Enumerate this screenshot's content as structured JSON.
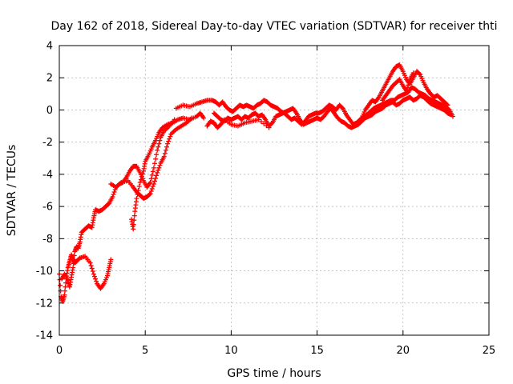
{
  "chart_data": {
    "type": "scatter",
    "title": "Day 162 of 2018, Sidereal Day-to-day VTEC variation (SDTVAR) for receiver thti",
    "xlabel": "GPS time / hours",
    "ylabel": "SDTVAR / TECUs",
    "xlim": [
      0,
      25
    ],
    "ylim": [
      -14,
      4
    ],
    "xticks": [
      0,
      5,
      10,
      15,
      20,
      25
    ],
    "yticks": [
      -14,
      -12,
      -10,
      -8,
      -6,
      -4,
      -2,
      0,
      2,
      4
    ],
    "grid": true,
    "marker": "plus",
    "series": [
      {
        "name": "SDTVAR",
        "color": "#ff0000",
        "points": [
          [
            0.0,
            -10.2
          ],
          [
            0.1,
            -11.6
          ],
          [
            0.2,
            -11.9
          ],
          [
            0.3,
            -11.5
          ],
          [
            0.4,
            -10.5
          ],
          [
            0.5,
            -9.8
          ],
          [
            0.6,
            -9.4
          ],
          [
            0.7,
            -9.0
          ],
          [
            0.8,
            -9.3
          ],
          [
            0.9,
            -9.5
          ],
          [
            1.0,
            -9.4
          ],
          [
            1.2,
            -9.2
          ],
          [
            1.5,
            -9.1
          ],
          [
            1.8,
            -9.5
          ],
          [
            2.0,
            -10.2
          ],
          [
            2.2,
            -10.8
          ],
          [
            2.4,
            -11.1
          ],
          [
            2.6,
            -10.8
          ],
          [
            2.8,
            -10.3
          ],
          [
            2.9,
            -9.8
          ],
          [
            3.0,
            -9.3
          ],
          [
            0.15,
            -10.5
          ],
          [
            0.3,
            -10.2
          ],
          [
            0.5,
            -10.6
          ],
          [
            0.6,
            -11.0
          ],
          [
            0.7,
            -10.4
          ],
          [
            0.8,
            -9.8
          ],
          [
            0.9,
            -8.8
          ],
          [
            1.0,
            -8.5
          ],
          [
            1.1,
            -8.6
          ],
          [
            1.2,
            -8.2
          ],
          [
            1.3,
            -7.6
          ],
          [
            1.5,
            -7.4
          ],
          [
            1.7,
            -7.2
          ],
          [
            1.9,
            -7.3
          ],
          [
            2.0,
            -6.7
          ],
          [
            2.1,
            -6.2
          ],
          [
            2.3,
            -6.3
          ],
          [
            2.5,
            -6.2
          ],
          [
            2.7,
            -6.0
          ],
          [
            2.9,
            -5.8
          ],
          [
            3.1,
            -5.4
          ],
          [
            3.3,
            -4.8
          ],
          [
            3.5,
            -4.6
          ],
          [
            3.7,
            -4.5
          ],
          [
            3.9,
            -4.2
          ],
          [
            4.1,
            -3.8
          ],
          [
            4.3,
            -3.5
          ],
          [
            4.5,
            -3.5
          ],
          [
            4.7,
            -3.9
          ],
          [
            4.9,
            -4.4
          ],
          [
            5.1,
            -4.8
          ],
          [
            5.3,
            -4.5
          ],
          [
            5.5,
            -3.6
          ],
          [
            5.7,
            -2.5
          ],
          [
            5.9,
            -1.7
          ],
          [
            6.1,
            -1.3
          ],
          [
            6.4,
            -1.0
          ],
          [
            6.7,
            -0.6
          ],
          [
            3.0,
            -4.6
          ],
          [
            3.3,
            -4.8
          ],
          [
            3.6,
            -4.5
          ],
          [
            4.0,
            -4.4
          ],
          [
            4.3,
            -4.8
          ],
          [
            4.5,
            -5.1
          ],
          [
            4.7,
            -5.3
          ],
          [
            4.9,
            -5.5
          ],
          [
            5.1,
            -5.4
          ],
          [
            5.3,
            -5.2
          ],
          [
            5.5,
            -4.6
          ],
          [
            5.7,
            -3.9
          ],
          [
            5.9,
            -3.3
          ],
          [
            6.1,
            -2.9
          ],
          [
            6.3,
            -2.1
          ],
          [
            6.5,
            -1.5
          ],
          [
            6.8,
            -1.2
          ],
          [
            7.1,
            -1.0
          ],
          [
            7.4,
            -0.8
          ],
          [
            7.7,
            -0.5
          ],
          [
            4.2,
            -6.8
          ],
          [
            4.3,
            -7.4
          ],
          [
            4.4,
            -6.3
          ],
          [
            4.5,
            -5.5
          ],
          [
            4.7,
            -4.5
          ],
          [
            4.9,
            -3.8
          ],
          [
            5.0,
            -3.2
          ],
          [
            5.2,
            -2.8
          ],
          [
            5.4,
            -2.3
          ],
          [
            5.6,
            -1.9
          ],
          [
            5.8,
            -1.4
          ],
          [
            6.0,
            -1.1
          ],
          [
            6.3,
            -0.9
          ],
          [
            6.6,
            -0.8
          ],
          [
            6.9,
            -0.6
          ],
          [
            7.2,
            -0.5
          ],
          [
            7.6,
            -0.6
          ],
          [
            8.0,
            -0.4
          ],
          [
            8.2,
            -0.2
          ],
          [
            8.4,
            -0.5
          ],
          [
            6.8,
            0.1
          ],
          [
            7.2,
            0.3
          ],
          [
            7.6,
            0.2
          ],
          [
            8.0,
            0.4
          ],
          [
            8.3,
            0.5
          ],
          [
            8.6,
            0.6
          ],
          [
            8.9,
            0.6
          ],
          [
            9.1,
            0.5
          ],
          [
            9.3,
            0.3
          ],
          [
            9.5,
            0.5
          ],
          [
            9.7,
            0.2
          ],
          [
            9.9,
            0.0
          ],
          [
            10.1,
            -0.1
          ],
          [
            10.3,
            0.1
          ],
          [
            10.5,
            0.3
          ],
          [
            10.7,
            0.2
          ],
          [
            10.9,
            0.3
          ],
          [
            11.1,
            0.2
          ],
          [
            11.3,
            0.1
          ],
          [
            11.5,
            0.3
          ],
          [
            11.7,
            0.4
          ],
          [
            11.9,
            0.6
          ],
          [
            12.1,
            0.5
          ],
          [
            12.3,
            0.3
          ],
          [
            12.5,
            0.2
          ],
          [
            12.7,
            0.1
          ],
          [
            12.9,
            -0.1
          ],
          [
            13.1,
            -0.2
          ],
          [
            13.3,
            -0.4
          ],
          [
            13.5,
            -0.6
          ],
          [
            13.7,
            -0.5
          ],
          [
            13.9,
            -0.7
          ],
          [
            14.1,
            -0.9
          ],
          [
            14.3,
            -0.7
          ],
          [
            14.5,
            -0.4
          ],
          [
            14.7,
            -0.3
          ],
          [
            14.9,
            -0.2
          ],
          [
            15.1,
            -0.2
          ],
          [
            15.3,
            -0.1
          ],
          [
            15.5,
            0.1
          ],
          [
            15.7,
            0.3
          ],
          [
            15.9,
            0.2
          ],
          [
            16.1,
            0.0
          ],
          [
            16.3,
            0.3
          ],
          [
            16.5,
            0.1
          ],
          [
            16.7,
            -0.3
          ],
          [
            16.9,
            -0.6
          ],
          [
            17.1,
            -0.9
          ],
          [
            17.3,
            -0.8
          ],
          [
            17.5,
            -0.6
          ],
          [
            17.7,
            -0.4
          ],
          [
            17.9,
            -0.3
          ],
          [
            18.1,
            -0.1
          ],
          [
            18.3,
            0.1
          ],
          [
            18.5,
            0.2
          ],
          [
            18.7,
            0.3
          ],
          [
            18.9,
            0.4
          ],
          [
            19.1,
            0.5
          ],
          [
            19.3,
            0.6
          ],
          [
            19.5,
            0.6
          ],
          [
            19.7,
            0.8
          ],
          [
            19.9,
            0.9
          ],
          [
            20.1,
            1.0
          ],
          [
            20.3,
            1.1
          ],
          [
            20.5,
            1.4
          ],
          [
            20.7,
            1.3
          ],
          [
            20.9,
            1.1
          ],
          [
            21.1,
            1.0
          ],
          [
            21.3,
            0.9
          ],
          [
            21.5,
            0.7
          ],
          [
            21.7,
            0.6
          ],
          [
            21.9,
            0.5
          ],
          [
            22.1,
            0.4
          ],
          [
            22.3,
            0.3
          ],
          [
            22.5,
            0.2
          ],
          [
            22.7,
            0.0
          ],
          [
            22.9,
            -0.4
          ],
          [
            9.0,
            -0.2
          ],
          [
            9.2,
            -0.4
          ],
          [
            9.4,
            -0.6
          ],
          [
            9.6,
            -0.7
          ],
          [
            9.8,
            -0.5
          ],
          [
            10.0,
            -0.6
          ],
          [
            10.2,
            -0.5
          ],
          [
            10.4,
            -0.4
          ],
          [
            10.6,
            -0.6
          ],
          [
            10.8,
            -0.4
          ],
          [
            11.0,
            -0.5
          ],
          [
            11.2,
            -0.3
          ],
          [
            11.4,
            -0.2
          ],
          [
            11.6,
            -0.4
          ],
          [
            11.8,
            -0.3
          ],
          [
            12.0,
            -0.6
          ],
          [
            12.2,
            -1.0
          ],
          [
            12.4,
            -0.8
          ],
          [
            12.6,
            -0.4
          ],
          [
            12.8,
            -0.3
          ],
          [
            13.0,
            -0.2
          ],
          [
            13.2,
            -0.1
          ],
          [
            13.4,
            0.0
          ],
          [
            13.6,
            0.1
          ],
          [
            13.8,
            -0.2
          ],
          [
            14.0,
            -0.6
          ],
          [
            14.2,
            -0.9
          ],
          [
            14.4,
            -0.8
          ],
          [
            14.6,
            -0.7
          ],
          [
            14.8,
            -0.6
          ],
          [
            15.0,
            -0.5
          ],
          [
            15.2,
            -0.6
          ],
          [
            15.4,
            -0.4
          ],
          [
            15.6,
            -0.1
          ],
          [
            15.8,
            0.1
          ],
          [
            16.0,
            -0.2
          ],
          [
            16.2,
            -0.5
          ],
          [
            16.4,
            -0.7
          ],
          [
            16.6,
            -0.8
          ],
          [
            16.8,
            -1.0
          ],
          [
            17.0,
            -1.1
          ],
          [
            17.2,
            -1.0
          ],
          [
            17.4,
            -0.9
          ],
          [
            17.6,
            -0.7
          ],
          [
            17.8,
            -0.5
          ],
          [
            18.0,
            -0.4
          ],
          [
            18.2,
            -0.3
          ],
          [
            18.4,
            -0.1
          ],
          [
            18.6,
            0.0
          ],
          [
            18.8,
            0.1
          ],
          [
            19.0,
            0.3
          ],
          [
            19.2,
            0.4
          ],
          [
            19.4,
            0.5
          ],
          [
            19.6,
            0.3
          ],
          [
            19.8,
            0.4
          ],
          [
            20.0,
            0.6
          ],
          [
            20.2,
            0.7
          ],
          [
            20.4,
            0.8
          ],
          [
            20.6,
            0.6
          ],
          [
            20.8,
            0.7
          ],
          [
            21.0,
            0.9
          ],
          [
            21.2,
            0.8
          ],
          [
            21.4,
            0.6
          ],
          [
            21.6,
            0.4
          ],
          [
            21.8,
            0.3
          ],
          [
            22.0,
            0.2
          ],
          [
            22.2,
            0.1
          ],
          [
            22.4,
            0.0
          ],
          [
            22.6,
            -0.2
          ],
          [
            22.8,
            -0.3
          ],
          [
            8.6,
            -1.0
          ],
          [
            8.8,
            -0.7
          ],
          [
            9.0,
            -0.8
          ],
          [
            9.2,
            -1.1
          ],
          [
            9.4,
            -0.9
          ],
          [
            9.6,
            -0.6
          ],
          [
            10.0,
            -0.9
          ],
          [
            10.4,
            -1.0
          ],
          [
            10.8,
            -0.8
          ],
          [
            11.2,
            -0.7
          ],
          [
            11.6,
            -0.6
          ],
          [
            12.2,
            -1.1
          ],
          [
            17.6,
            -0.5
          ],
          [
            17.8,
            0.0
          ],
          [
            18.0,
            0.3
          ],
          [
            18.2,
            0.6
          ],
          [
            18.4,
            0.5
          ],
          [
            18.6,
            0.8
          ],
          [
            18.8,
            1.2
          ],
          [
            19.0,
            1.6
          ],
          [
            19.2,
            2.0
          ],
          [
            19.4,
            2.4
          ],
          [
            19.6,
            2.7
          ],
          [
            19.8,
            2.8
          ],
          [
            20.0,
            2.4
          ],
          [
            20.2,
            1.9
          ],
          [
            20.4,
            1.6
          ],
          [
            20.6,
            2.0
          ],
          [
            20.8,
            2.4
          ],
          [
            21.0,
            2.2
          ],
          [
            21.2,
            1.7
          ],
          [
            21.4,
            1.3
          ],
          [
            21.6,
            1.0
          ],
          [
            21.8,
            0.8
          ],
          [
            22.0,
            0.9
          ],
          [
            22.2,
            0.7
          ],
          [
            22.4,
            0.5
          ],
          [
            22.6,
            0.3
          ],
          [
            18.8,
            0.6
          ],
          [
            19.0,
            0.9
          ],
          [
            19.2,
            1.2
          ],
          [
            19.4,
            1.5
          ],
          [
            19.6,
            1.7
          ],
          [
            19.8,
            1.9
          ],
          [
            20.0,
            1.5
          ],
          [
            20.2,
            1.2
          ],
          [
            20.4,
            1.9
          ],
          [
            20.6,
            2.3
          ]
        ]
      }
    ]
  }
}
